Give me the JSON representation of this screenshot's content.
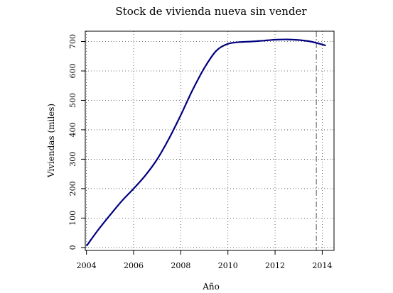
{
  "chart_data": {
    "type": "line",
    "title": "Stock de vivienda nueva sin vender",
    "xlabel": "Año",
    "ylabel": "Viviendas (miles)",
    "xlim": [
      2003.95,
      2014.5
    ],
    "ylim": [
      -10,
      735
    ],
    "xticks": [
      2004,
      2006,
      2008,
      2010,
      2012,
      2014
    ],
    "yticks": [
      0,
      100,
      200,
      300,
      400,
      500,
      600,
      700
    ],
    "grid": true,
    "grid_style": "dotted",
    "reference_line_x": 2013.75,
    "series": [
      {
        "color": "#000080",
        "x": [
          2004.0,
          2004.5,
          2005.0,
          2005.5,
          2006.0,
          2006.5,
          2007.0,
          2007.5,
          2008.0,
          2008.5,
          2009.0,
          2009.5,
          2010.0,
          2010.5,
          2011.0,
          2011.5,
          2012.0,
          2012.5,
          2013.0,
          2013.5,
          2014.0,
          2014.15
        ],
        "y": [
          5,
          60,
          110,
          158,
          200,
          245,
          300,
          370,
          450,
          535,
          610,
          668,
          692,
          698,
          700,
          703,
          706,
          707,
          705,
          700,
          690,
          686
        ]
      }
    ]
  }
}
